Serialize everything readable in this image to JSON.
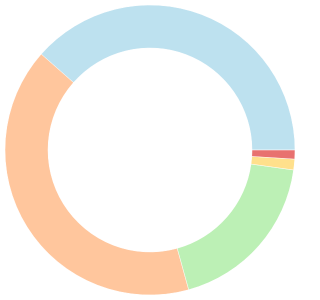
{
  "chart_data": {
    "type": "donut",
    "values": [
      38.5,
      40.8,
      18.5,
      1.2,
      1.0
    ],
    "colors": [
      "#bde1ef",
      "#ffc69d",
      "#bcf0b5",
      "#ffe08c",
      "#e8716f"
    ]
  }
}
